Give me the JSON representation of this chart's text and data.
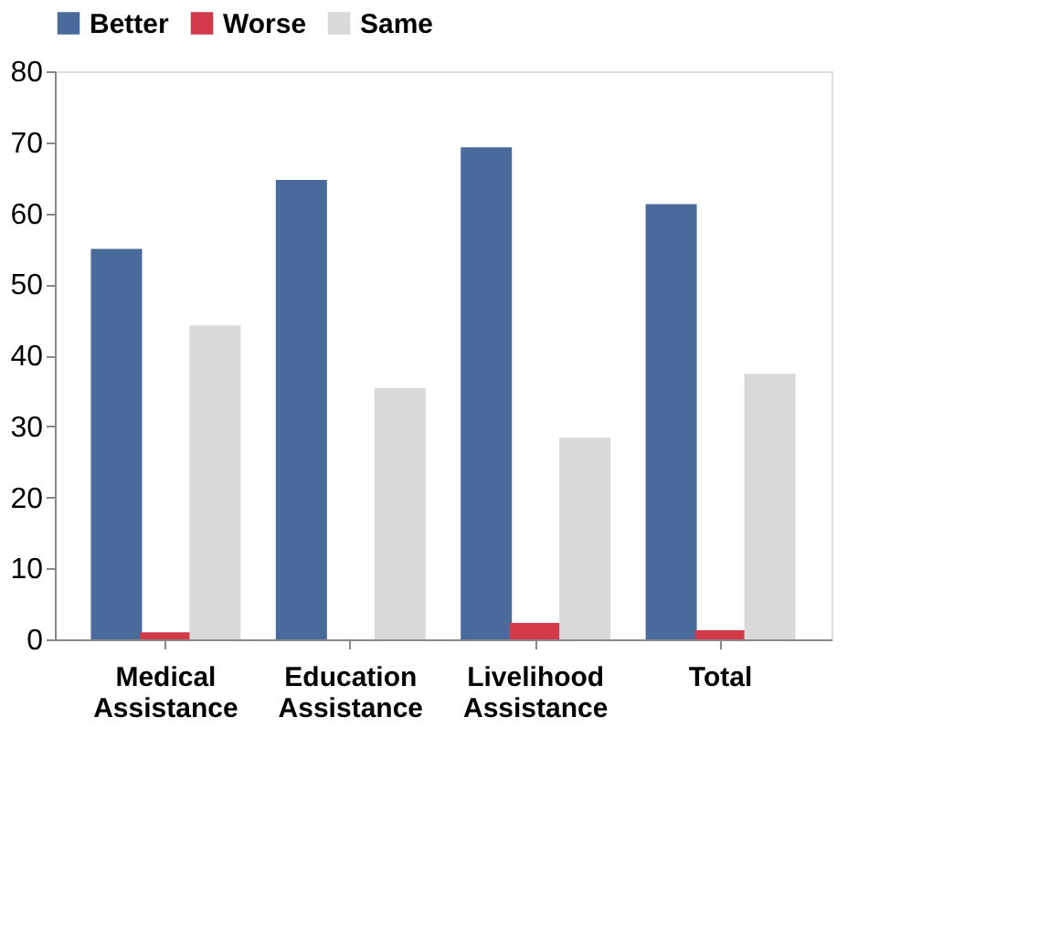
{
  "chart_data": {
    "type": "bar",
    "categories": [
      "Medical Assistance",
      "Education Assistance",
      "Livelihood Assistance",
      "Total"
    ],
    "series": [
      {
        "name": "Better",
        "color": "#4a6a9c",
        "values": [
          55,
          64.7,
          69.3,
          61.3
        ]
      },
      {
        "name": "Worse",
        "color": "#d23a4a",
        "values": [
          1,
          0,
          2.3,
          1.3
        ]
      },
      {
        "name": "Same",
        "color": "#d9d9d9",
        "values": [
          44.2,
          35.4,
          28.4,
          37.4
        ]
      }
    ],
    "ylim": [
      0,
      80
    ],
    "yticks": [
      0,
      10,
      20,
      30,
      40,
      50,
      60,
      70,
      80
    ],
    "grid": false,
    "legend": "top"
  }
}
